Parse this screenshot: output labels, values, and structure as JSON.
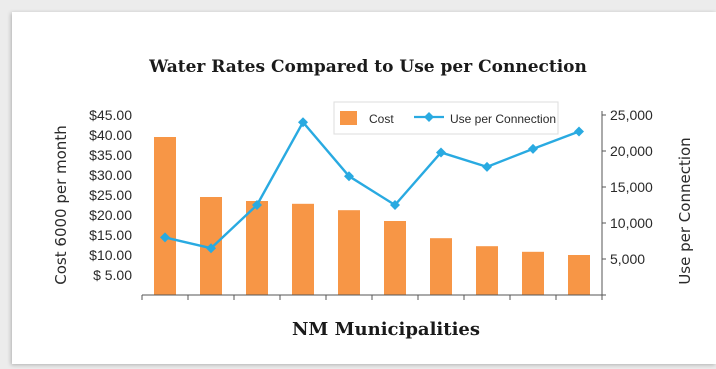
{
  "chart_data": {
    "type": "bar",
    "title": "Water Rates Compared to Use per Connection",
    "xlabel": "NM Municipalities",
    "ylabel": "Cost 6000 per month",
    "y2label": "Use per Connection",
    "categories": [
      "",
      "",
      "",
      "",
      "",
      "",
      "",
      "",
      "",
      ""
    ],
    "ylim": [
      0,
      45
    ],
    "y2lim": [
      0,
      25000
    ],
    "yticks": [
      "$  5.00",
      "$10.00",
      "$15.00",
      "$20.00",
      "$25.00",
      "$30.00",
      "$35.00",
      "$40.00",
      "$45.00"
    ],
    "ytick_values": [
      5,
      10,
      15,
      20,
      25,
      30,
      35,
      40,
      45
    ],
    "y2ticks": [
      "5,000",
      "10,000",
      "15,000",
      "20,000",
      "25,000"
    ],
    "y2tick_values": [
      5000,
      10000,
      15000,
      20000,
      25000
    ],
    "legend_position": "top-right",
    "series": [
      {
        "name": "Cost",
        "kind": "bar",
        "axis": "left",
        "color": "#f79646",
        "values": [
          39.5,
          24.5,
          23.5,
          22.8,
          21.2,
          18.5,
          14.2,
          12.2,
          10.8,
          10.0
        ]
      },
      {
        "name": "Use per Connection",
        "kind": "line",
        "axis": "right",
        "color": "#29aae1",
        "values": [
          8000,
          6500,
          12500,
          24000,
          16500,
          12500,
          19800,
          17800,
          20300,
          22700
        ]
      }
    ]
  }
}
